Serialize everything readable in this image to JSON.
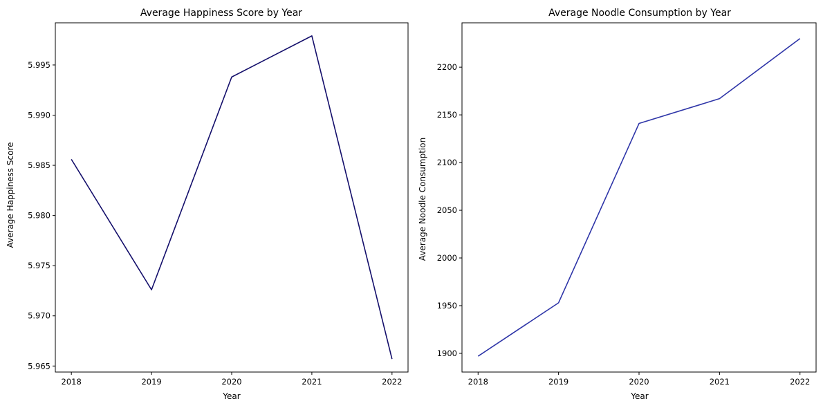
{
  "chart_data": [
    {
      "type": "line",
      "title": "Average Happiness Score by Year",
      "xlabel": "Year",
      "ylabel": "Average Happiness Score",
      "x": [
        2018,
        2019,
        2020,
        2021,
        2022
      ],
      "x_ticks": [
        "2018",
        "2019",
        "2020",
        "2021",
        "2022"
      ],
      "y_ticks": [
        "5.965",
        "5.970",
        "5.975",
        "5.980",
        "5.985",
        "5.990",
        "5.995"
      ],
      "ylim": [
        5.9644,
        5.9992
      ],
      "series": [
        {
          "values": [
            5.9856,
            5.9726,
            5.9938,
            5.9979,
            5.9657
          ],
          "color": "#140f6b"
        }
      ],
      "grid": false,
      "legend": "none"
    },
    {
      "type": "line",
      "title": "Average Noodle Consumption by Year",
      "xlabel": "Year",
      "ylabel": "Average Noodle Consumption",
      "x": [
        2018,
        2019,
        2020,
        2021,
        2022
      ],
      "x_ticks": [
        "2018",
        "2019",
        "2020",
        "2021",
        "2022"
      ],
      "y_ticks": [
        "1900",
        "1950",
        "2000",
        "2050",
        "2100",
        "2150",
        "2200"
      ],
      "ylim": [
        1880.4,
        2246.5
      ],
      "series": [
        {
          "values": [
            1897,
            1953,
            2141,
            2167,
            2230
          ],
          "color": "#2e35a8"
        }
      ],
      "grid": false,
      "legend": "none"
    }
  ]
}
